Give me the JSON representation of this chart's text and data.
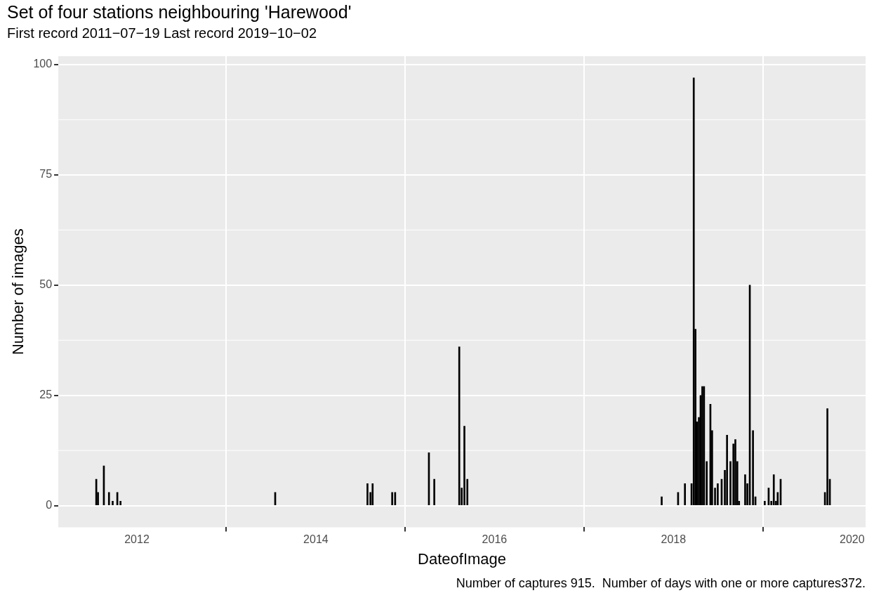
{
  "chart_data": {
    "type": "bar",
    "title": "Set of four stations neighbouring 'Harewood'",
    "subtitle": "First record 2011−07−19 Last record 2019−10−02",
    "xlabel": "DateofImage",
    "ylabel": "Number of images",
    "x": [
      "2011-07-19",
      "2011-07-26",
      "2011-08-19",
      "2011-09-09",
      "2011-09-24",
      "2011-10-13",
      "2011-10-26",
      "2013-07-19",
      "2014-07-31",
      "2014-08-12",
      "2014-08-21",
      "2014-11-09",
      "2014-11-21",
      "2015-04-08",
      "2015-04-30",
      "2015-08-10",
      "2015-08-20",
      "2015-08-31",
      "2015-09-12",
      "2017-11-14",
      "2018-01-20",
      "2018-02-17",
      "2018-03-16",
      "2018-03-25",
      "2018-04-01",
      "2018-04-08",
      "2018-04-15",
      "2018-04-22",
      "2018-04-29",
      "2018-05-06",
      "2018-05-17",
      "2018-06-01",
      "2018-06-08",
      "2018-06-20",
      "2018-07-01",
      "2018-07-17",
      "2018-07-30",
      "2018-08-08",
      "2018-08-22",
      "2018-09-03",
      "2018-09-11",
      "2018-09-19",
      "2018-09-26",
      "2018-10-21",
      "2018-10-30",
      "2018-11-09",
      "2018-11-22",
      "2018-12-02",
      "2019-01-09",
      "2019-01-25",
      "2019-02-05",
      "2019-02-15",
      "2019-02-24",
      "2019-03-03",
      "2019-03-15",
      "2019-09-12",
      "2019-09-22",
      "2019-10-02"
    ],
    "values": [
      6,
      3,
      9,
      3,
      1,
      3,
      1,
      3,
      5,
      3,
      5,
      3,
      3,
      12,
      6,
      36,
      4,
      18,
      6,
      2,
      3,
      5,
      5,
      97,
      40,
      19,
      20,
      25,
      27,
      27,
      10,
      23,
      17,
      4,
      5,
      6,
      8,
      16,
      10,
      14,
      15,
      10,
      1,
      7,
      5,
      50,
      17,
      2,
      1,
      4,
      1,
      7,
      1,
      3,
      6,
      3,
      22,
      6
    ],
    "color": "#000000",
    "xlim": [
      "2011-02-14",
      "2020-02-25"
    ],
    "xticks": [
      "2012",
      "2014",
      "2016",
      "2018",
      "2020"
    ],
    "ylim": [
      -4.9,
      101.9
    ],
    "yticks": [
      0,
      25,
      50,
      75,
      100
    ],
    "grid": true,
    "annotations": [
      "Number of captures 915.  Number of days with one or more captures372."
    ]
  }
}
